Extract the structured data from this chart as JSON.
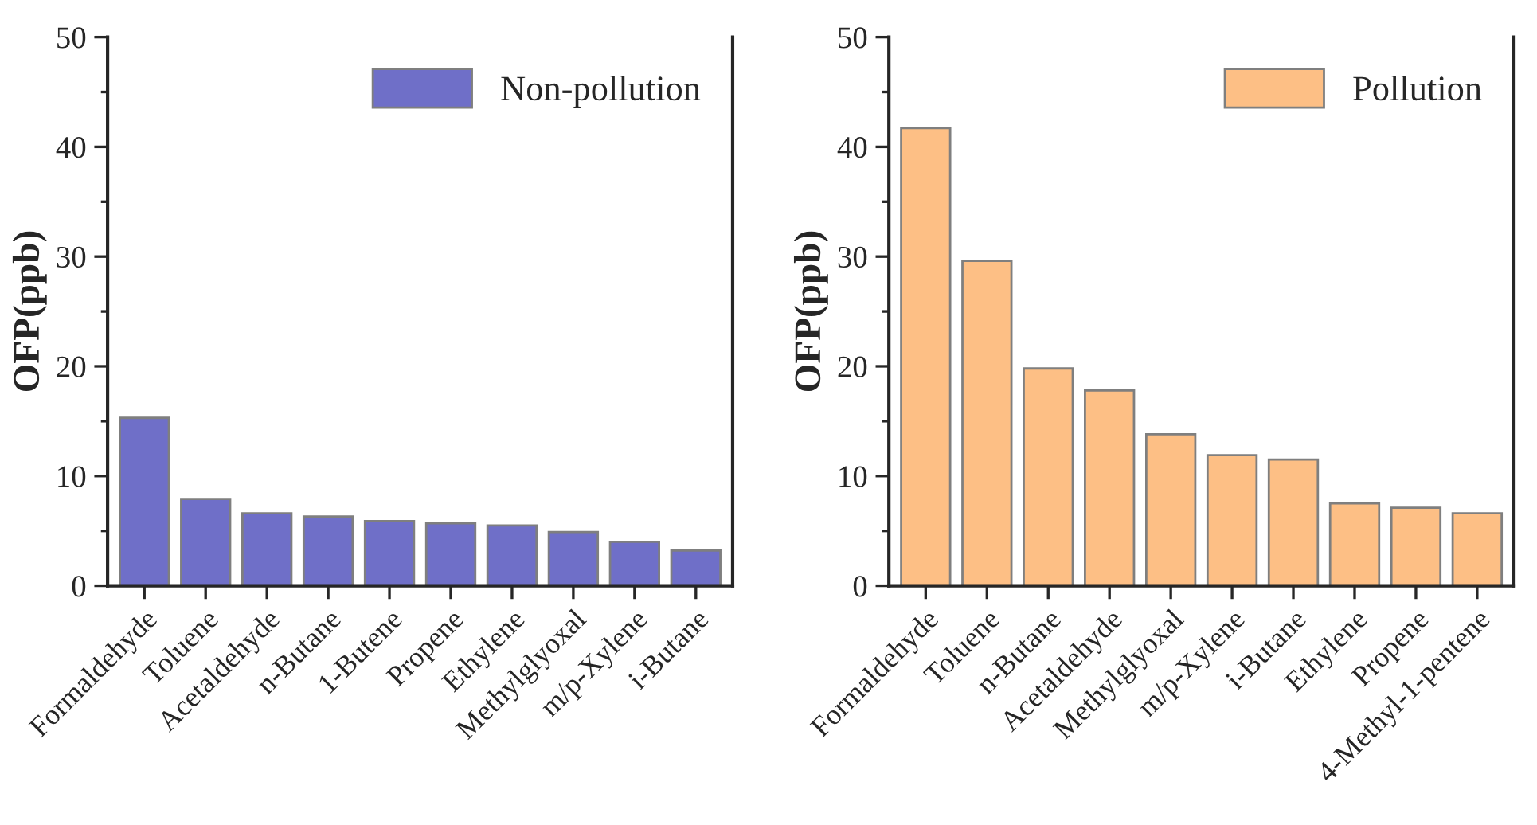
{
  "chart_data": [
    {
      "type": "bar",
      "ylabel": "OFP(ppb)",
      "categories": [
        "Formaldehyde",
        "Toluene",
        "Acetaldehyde",
        "n-Butane",
        "1-Butene",
        "Propene",
        "Ethylene",
        "Methylglyoxal",
        "m/p-Xylene",
        "i-Butane"
      ],
      "series": [
        {
          "name": "Non-pollution",
          "color": "#6f6fc8",
          "values": [
            15.3,
            7.9,
            6.6,
            6.3,
            5.9,
            5.7,
            5.5,
            4.9,
            4.0,
            3.2
          ]
        }
      ],
      "ylim": [
        0,
        50
      ],
      "yticks": [
        0,
        10,
        20,
        30,
        40,
        50
      ],
      "grid": false,
      "legend": "top right"
    },
    {
      "type": "bar",
      "ylabel": "OFP(ppb)",
      "categories": [
        "Formaldehyde",
        "Toluene",
        "n-Butane",
        "Acetaldehyde",
        "Methylglyoxal",
        "m/p-Xylene",
        "i-Butane",
        "Ethylene",
        "Propene",
        "4-Methyl-1-pentene"
      ],
      "series": [
        {
          "name": "Pollution",
          "color": "#fdbf85",
          "values": [
            41.7,
            29.6,
            19.8,
            17.8,
            13.8,
            11.9,
            11.5,
            7.5,
            7.1,
            6.6
          ]
        }
      ],
      "ylim": [
        0,
        50
      ],
      "yticks": [
        0,
        10,
        20,
        30,
        40,
        50
      ],
      "grid": false,
      "legend": "top right"
    }
  ]
}
